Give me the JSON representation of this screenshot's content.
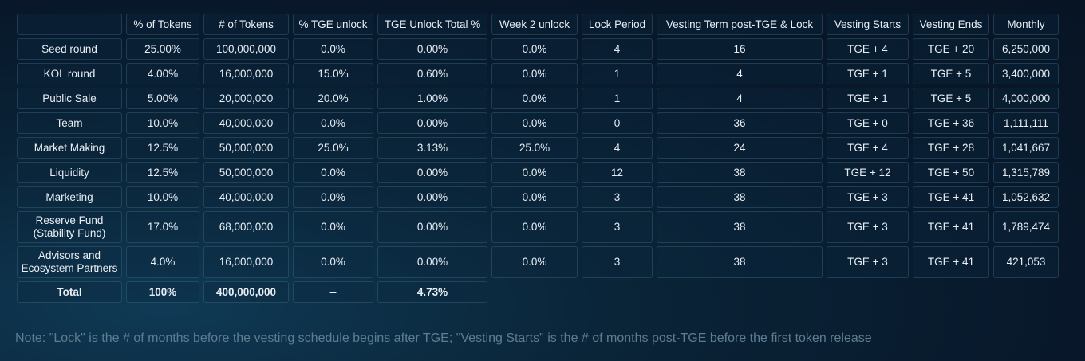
{
  "table": {
    "headers": [
      "",
      "% of Tokens",
      "# of Tokens",
      "% TGE unlock",
      "TGE Unlock Total %",
      "Week 2 unlock",
      "Lock Period",
      "Vesting Term post-TGE & Lock",
      "Vesting Starts",
      "Vesting Ends",
      "Monthly"
    ],
    "rows": [
      [
        "Seed round",
        "25.00%",
        "100,000,000",
        "0.0%",
        "0.00%",
        "0.0%",
        "4",
        "16",
        "TGE + 4",
        "TGE + 20",
        "6,250,000"
      ],
      [
        "KOL round",
        "4.00%",
        "16,000,000",
        "15.0%",
        "0.60%",
        "0.0%",
        "1",
        "4",
        "TGE + 1",
        "TGE + 5",
        "3,400,000"
      ],
      [
        "Public Sale",
        "5.00%",
        "20,000,000",
        "20.0%",
        "1.00%",
        "0.0%",
        "1",
        "4",
        "TGE + 1",
        "TGE + 5",
        "4,000,000"
      ],
      [
        "Team",
        "10.0%",
        "40,000,000",
        "0.0%",
        "0.00%",
        "0.0%",
        "0",
        "36",
        "TGE + 0",
        "TGE + 36",
        "1,111,111"
      ],
      [
        "Market Making",
        "12.5%",
        "50,000,000",
        "25.0%",
        "3.13%",
        "25.0%",
        "4",
        "24",
        "TGE + 4",
        "TGE + 28",
        "1,041,667"
      ],
      [
        "Liquidity",
        "12.5%",
        "50,000,000",
        "0.0%",
        "0.00%",
        "0.0%",
        "12",
        "38",
        "TGE + 12",
        "TGE + 50",
        "1,315,789"
      ],
      [
        "Marketing",
        "10.0%",
        "40,000,000",
        "0.0%",
        "0.00%",
        "0.0%",
        "3",
        "38",
        "TGE + 3",
        "TGE + 41",
        "1,052,632"
      ],
      [
        "Reserve Fund (Stability Fund)",
        "17.0%",
        "68,000,000",
        "0.0%",
        "0.00%",
        "0.0%",
        "3",
        "38",
        "TGE + 3",
        "TGE + 41",
        "1,789,474"
      ],
      [
        "Advisors and Ecosystem Partners",
        "4.0%",
        "16,000,000",
        "0.0%",
        "0.00%",
        "0.0%",
        "3",
        "38",
        "TGE + 3",
        "TGE + 41",
        "421,053"
      ]
    ],
    "total": [
      "Total",
      "100%",
      "400,000,000",
      "--",
      "4.73%"
    ]
  },
  "note": "Note: \"Lock\" is the # of months before the vesting schedule begins after TGE; \"Vesting Starts\" is the # of months post-TGE before the first token release"
}
